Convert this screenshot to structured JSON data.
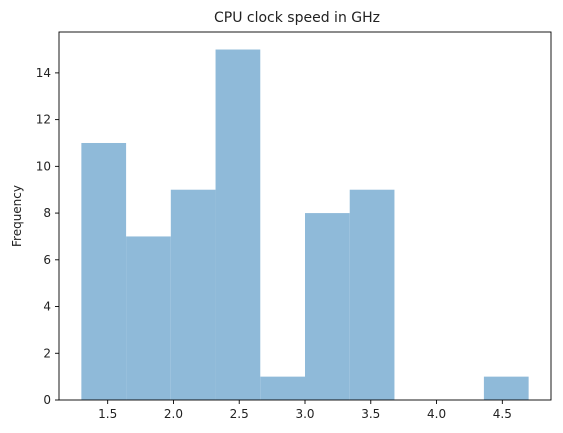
{
  "chart_data": {
    "type": "bar",
    "title": "CPU clock speed in GHz",
    "xlabel": "",
    "ylabel": "Frequency",
    "bin_edges": [
      1.3,
      1.64,
      1.98,
      2.32,
      2.66,
      3.0,
      3.34,
      3.68,
      4.02,
      4.36,
      4.7
    ],
    "values": [
      11,
      7,
      9,
      15,
      1,
      8,
      9,
      0,
      0,
      1
    ],
    "xlim": [
      1.13,
      4.87
    ],
    "ylim": [
      0,
      15.75
    ],
    "xticks": [
      1.5,
      2.0,
      2.5,
      3.0,
      3.5,
      4.0,
      4.5
    ],
    "xtick_labels": [
      "1.5",
      "2.0",
      "2.5",
      "3.0",
      "3.5",
      "4.0",
      "4.5"
    ],
    "yticks": [
      0,
      2,
      4,
      6,
      8,
      10,
      12,
      14
    ],
    "ytick_labels": [
      "0",
      "2",
      "4",
      "6",
      "8",
      "10",
      "12",
      "14"
    ],
    "bar_color": "#8fbad9",
    "grid": false,
    "legend": "none"
  }
}
